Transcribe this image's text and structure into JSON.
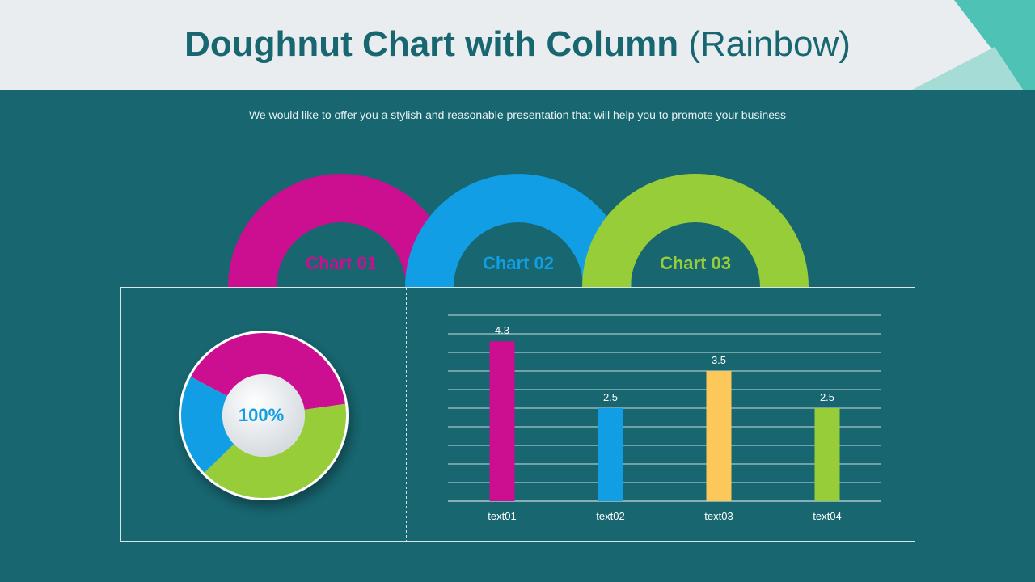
{
  "header": {
    "title_bold": "Doughnut Chart with Column",
    "title_light": "(Rainbow)"
  },
  "subtitle": "We would like to offer you a stylish and reasonable presentation that will help you to promote your business",
  "colors": {
    "magenta": "#cb0f90",
    "blue": "#129ee4",
    "green": "#97cd39",
    "yellow": "#fdc85a",
    "teal_bg": "#176670",
    "header_bg": "#e9edf0"
  },
  "chart_data": [
    {
      "type": "pie",
      "subtype": "doughnut",
      "center_label": "100%",
      "arc_labels": [
        "Chart 01",
        "Chart 02",
        "Chart 03"
      ],
      "segments": [
        {
          "name": "Chart 01",
          "value": 40,
          "color": "#cb0f90"
        },
        {
          "name": "Chart 03",
          "value": 40,
          "color": "#97cd39"
        },
        {
          "name": "Chart 02",
          "value": 20,
          "color": "#129ee4"
        }
      ]
    },
    {
      "type": "bar",
      "categories": [
        "text01",
        "text02",
        "text03",
        "text04"
      ],
      "values": [
        4.3,
        2.5,
        3.5,
        2.5
      ],
      "value_labels": [
        "4.3",
        "2.5",
        "3.5",
        "2.5"
      ],
      "colors": [
        "#cb0f90",
        "#129ee4",
        "#fdc85a",
        "#97cd39"
      ],
      "ylim": [
        0,
        5
      ],
      "grid": true
    }
  ]
}
